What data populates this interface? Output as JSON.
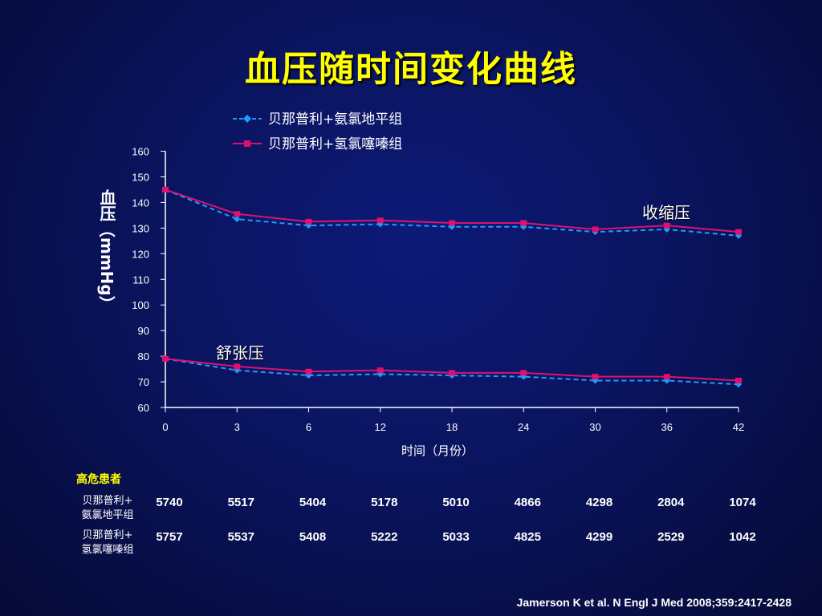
{
  "slide": {
    "title": "血压随时间变化曲线",
    "citation": "Jamerson K et al. N Engl J Med 2008;359:2417-2428"
  },
  "chart_data": {
    "type": "line",
    "xlabel": "时间（月份）",
    "ylabel_main": "血压",
    "ylabel_unit": "（mmHg）",
    "x": [
      0,
      3,
      6,
      12,
      18,
      24,
      30,
      36,
      42
    ],
    "x_tick_labels": [
      "0",
      "3",
      "6",
      "12",
      "18",
      "24",
      "30",
      "36",
      "42"
    ],
    "ylim": [
      60,
      160
    ],
    "y_tick_labels": [
      "160",
      "150",
      "140",
      "130",
      "120",
      "110",
      "100",
      "90",
      "80",
      "70",
      "60"
    ],
    "series": [
      {
        "name": "贝那普利+氨氯地平组",
        "group": "systolic",
        "color": "#1e9bff",
        "style": "dashed",
        "marker": "diamond",
        "values": [
          145,
          133.5,
          131,
          131.5,
          130.5,
          130.5,
          128.5,
          129.5,
          127
        ]
      },
      {
        "name": "贝那普利+氢氯噻嗪组",
        "group": "systolic",
        "color": "#e0106e",
        "style": "solid",
        "marker": "square",
        "values": [
          145,
          135.5,
          132.5,
          133,
          132,
          132,
          129.5,
          131,
          128.5
        ]
      },
      {
        "name": "贝那普利+氨氯地平组",
        "group": "diastolic",
        "color": "#1e9bff",
        "style": "dashed",
        "marker": "diamond",
        "values": [
          79,
          74.5,
          72.5,
          73,
          72.5,
          72,
          70.5,
          70.5,
          69
        ]
      },
      {
        "name": "贝那普利+氢氯噻嗪组",
        "group": "diastolic",
        "color": "#e0106e",
        "style": "solid",
        "marker": "square",
        "values": [
          79,
          76,
          74,
          74.5,
          73.5,
          73.5,
          72,
          72,
          70.5
        ]
      }
    ],
    "legend": [
      "贝那普利+氨氯地平组",
      "贝那普利+氢氯噻嗪组"
    ],
    "annotations": {
      "systolic": "收缩压",
      "diastolic": "舒张压"
    },
    "grid": false
  },
  "table": {
    "title": "高危患者",
    "rows": [
      {
        "label_line1": "贝那普利+",
        "label_line2": "氨氯地平组",
        "values": [
          "5740",
          "5517",
          "5404",
          "5178",
          "5010",
          "4866",
          "4298",
          "2804",
          "1074"
        ]
      },
      {
        "label_line1": "贝那普利+",
        "label_line2": "氢氯噻嗪组",
        "values": [
          "5757",
          "5537",
          "5408",
          "5222",
          "5033",
          "4825",
          "4299",
          "2529",
          "1042"
        ]
      }
    ]
  }
}
